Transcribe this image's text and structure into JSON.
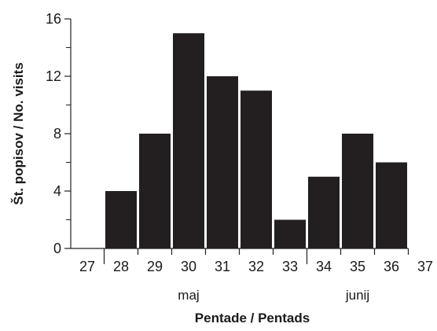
{
  "chart_data": {
    "type": "bar",
    "title": "",
    "xlabel": "Pentade / Pentads",
    "ylabel": "Št. popisov / No. visits",
    "ylim": [
      0,
      16
    ],
    "y_ticks": [
      0,
      4,
      8,
      12,
      16
    ],
    "x_tick_labels": [
      "27",
      "28",
      "29",
      "30",
      "31",
      "32",
      "33",
      "34",
      "35",
      "36",
      "37"
    ],
    "categories": [
      "28",
      "29",
      "30",
      "31",
      "32",
      "33",
      "34",
      "35",
      "36"
    ],
    "values": [
      4,
      8,
      15,
      12,
      11,
      2,
      5,
      8,
      6
    ],
    "month_labels": [
      "maj",
      "junij"
    ],
    "bar_color": "#231f20",
    "grid": false,
    "legend": "none"
  }
}
